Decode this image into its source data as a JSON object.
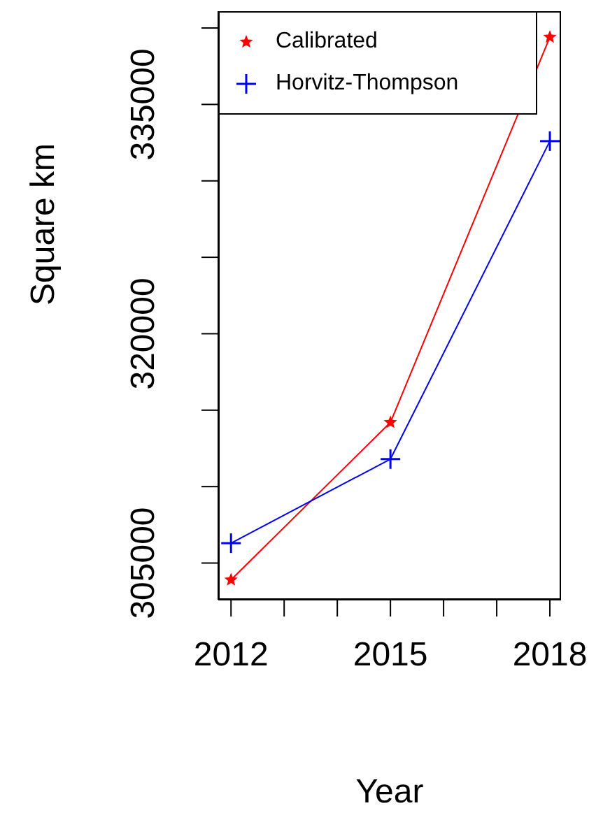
{
  "chart_data": {
    "type": "line",
    "xlabel": "Year",
    "ylabel": "Square km",
    "x": [
      2012,
      2015,
      2018
    ],
    "series": [
      {
        "name": "Calibrated",
        "color": "#ff0000",
        "marker": "star",
        "values": [
          303900,
          314200,
          339400
        ]
      },
      {
        "name": "Horvitz-Thompson",
        "color": "#0000ff",
        "marker": "cross",
        "values": [
          306300,
          311800,
          332600
        ]
      }
    ],
    "xlim": [
      2011.76,
      2018.21
    ],
    "xticks": [
      2012,
      {
        "value": 2013,
        "label": null
      },
      {
        "value": 2014,
        "label": null
      },
      2015,
      {
        "value": 2016,
        "label": null
      },
      {
        "value": 2017,
        "label": null
      },
      2018
    ],
    "ylim": [
      302600,
      341100
    ],
    "yticks": [
      305000,
      {
        "value": 310000,
        "label": null
      },
      {
        "value": 315000,
        "label": null
      },
      320000,
      {
        "value": 325000,
        "label": null
      },
      {
        "value": 330000,
        "label": null
      },
      335000,
      {
        "value": 340000,
        "label": null
      }
    ],
    "legend": "top left",
    "grid": false,
    "line_style": "solid"
  }
}
